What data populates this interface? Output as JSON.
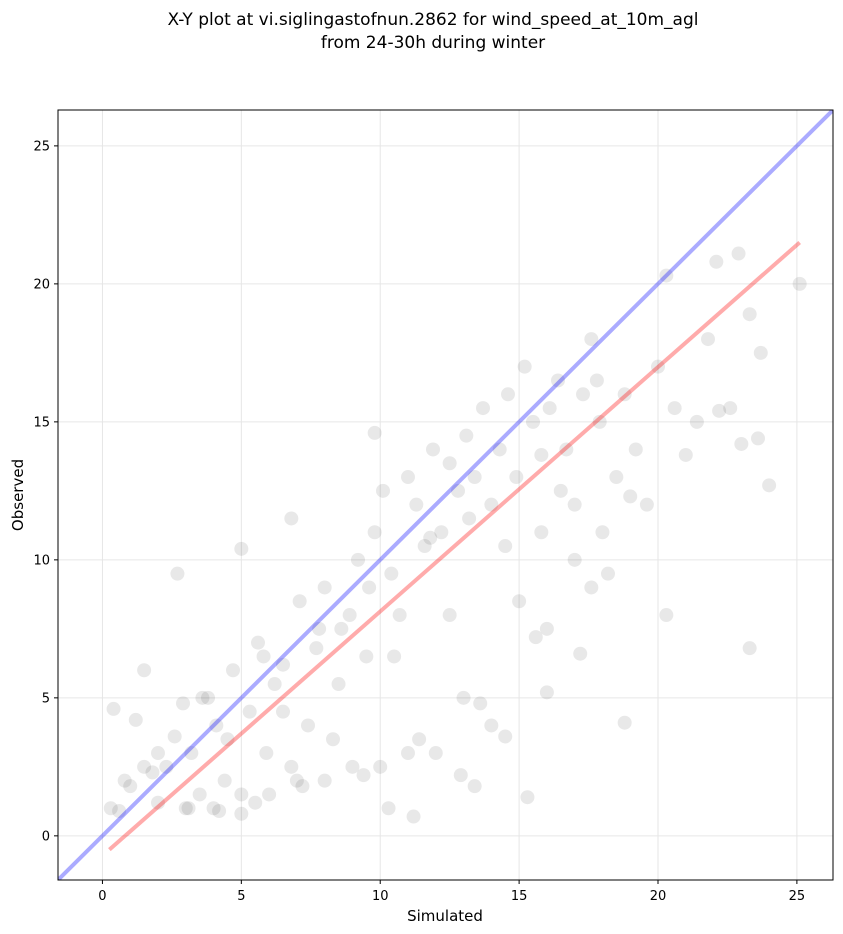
{
  "chart_data": {
    "type": "scatter",
    "title_line1": "X-Y plot at vi.siglingastofnun.2862 for wind_speed_at_10m_agl",
    "title_line2": "from 24-30h during winter",
    "xlabel": "Simulated",
    "ylabel": "Observed",
    "xlim": [
      -1.6,
      26.3
    ],
    "ylim": [
      -1.6,
      26.3
    ],
    "xticks": [
      0,
      5,
      10,
      15,
      20,
      25
    ],
    "yticks": [
      0,
      5,
      10,
      15,
      20,
      25
    ],
    "grid": true,
    "colors": {
      "points": "#000000",
      "identity_line": "#0000ff",
      "fit_line": "#ff0000"
    },
    "identity_line": {
      "name": "",
      "slope": 1,
      "intercept": 0
    },
    "fit_line": {
      "name": "",
      "x_range": [
        0.25,
        25.1
      ],
      "y_range": [
        -0.5,
        21.5
      ]
    },
    "points": {
      "x": [
        0.3,
        0.4,
        0.6,
        0.8,
        1.0,
        1.2,
        1.5,
        1.8,
        2.0,
        2.3,
        2.6,
        2.9,
        3.2,
        3.5,
        3.8,
        4.1,
        4.4,
        4.7,
        5.0,
        5.3,
        5.6,
        5.9,
        6.2,
        6.5,
        6.8,
        7.1,
        7.4,
        7.7,
        8.0,
        8.3,
        8.6,
        8.9,
        9.2,
        9.5,
        9.8,
        10.1,
        10.4,
        10.7,
        11.0,
        11.3,
        11.6,
        11.9,
        12.2,
        12.5,
        12.8,
        13.1,
        13.4,
        13.7,
        14.0,
        14.3,
        14.6,
        14.9,
        15.2,
        15.5,
        15.8,
        16.1,
        16.4,
        16.7,
        17.0,
        17.3,
        17.6,
        17.9,
        18.2,
        18.5,
        18.8,
        19.2,
        19.6,
        20.0,
        20.3,
        20.6,
        21.0,
        21.4,
        21.8,
        22.2,
        22.6,
        23.0,
        23.3,
        23.7,
        24.0,
        25.1,
        2.7,
        3.1,
        5.0,
        6.8,
        9.8,
        10.3,
        11.2,
        12.9,
        13.4,
        14.5,
        15.3,
        16.0,
        17.2,
        18.8,
        20.3,
        22.1,
        22.9,
        23.3,
        23.6,
        2.0,
        4.0,
        6.0,
        8.0,
        10.0,
        12.0,
        14.0,
        16.0,
        3.0,
        5.0,
        7.0,
        9.0,
        11.0,
        13.0,
        15.0,
        17.0,
        1.5,
        4.5,
        6.5,
        8.5,
        10.5,
        12.5,
        14.5,
        16.5,
        18.0,
        4.2,
        5.5,
        7.2,
        9.4,
        11.4,
        13.6,
        15.6,
        17.6,
        19.0,
        3.6,
        5.8,
        7.8,
        9.6,
        11.8,
        13.2,
        15.8,
        17.8
      ],
      "y": [
        1.0,
        4.6,
        0.9,
        2.0,
        1.8,
        4.2,
        6.0,
        2.3,
        3.0,
        2.5,
        3.6,
        4.8,
        3.0,
        1.5,
        5.0,
        4.0,
        2.0,
        6.0,
        0.8,
        4.5,
        7.0,
        3.0,
        5.5,
        6.2,
        2.5,
        8.5,
        4.0,
        6.8,
        9.0,
        3.5,
        7.5,
        8.0,
        10.0,
        6.5,
        11.0,
        12.5,
        9.5,
        8.0,
        13.0,
        12.0,
        10.5,
        14.0,
        11.0,
        13.5,
        12.5,
        14.5,
        13.0,
        15.5,
        12.0,
        14.0,
        16.0,
        13.0,
        17.0,
        15.0,
        11.0,
        15.5,
        16.5,
        14.0,
        12.0,
        16.0,
        18.0,
        15.0,
        9.5,
        13.0,
        16.0,
        14.0,
        12.0,
        17.0,
        20.3,
        15.5,
        13.8,
        15.0,
        18.0,
        15.4,
        15.5,
        14.2,
        18.9,
        17.5,
        12.7,
        20.0,
        9.5,
        1.0,
        10.4,
        11.5,
        14.6,
        1.0,
        0.7,
        2.2,
        1.8,
        3.6,
        1.4,
        5.2,
        6.6,
        4.1,
        8.0,
        20.8,
        21.1,
        6.8,
        14.4,
        1.2,
        1.0,
        1.5,
        2.0,
        2.5,
        3.0,
        4.0,
        7.5,
        1.0,
        1.5,
        2.0,
        2.5,
        3.0,
        5.0,
        8.5,
        10.0,
        2.5,
        3.5,
        4.5,
        5.5,
        6.5,
        8.0,
        10.5,
        12.5,
        11.0,
        0.9,
        1.2,
        1.8,
        2.2,
        3.5,
        4.8,
        7.2,
        9.0,
        12.3,
        5.0,
        6.5,
        7.5,
        9.0,
        10.8,
        11.5,
        13.8,
        16.5
      ]
    }
  }
}
